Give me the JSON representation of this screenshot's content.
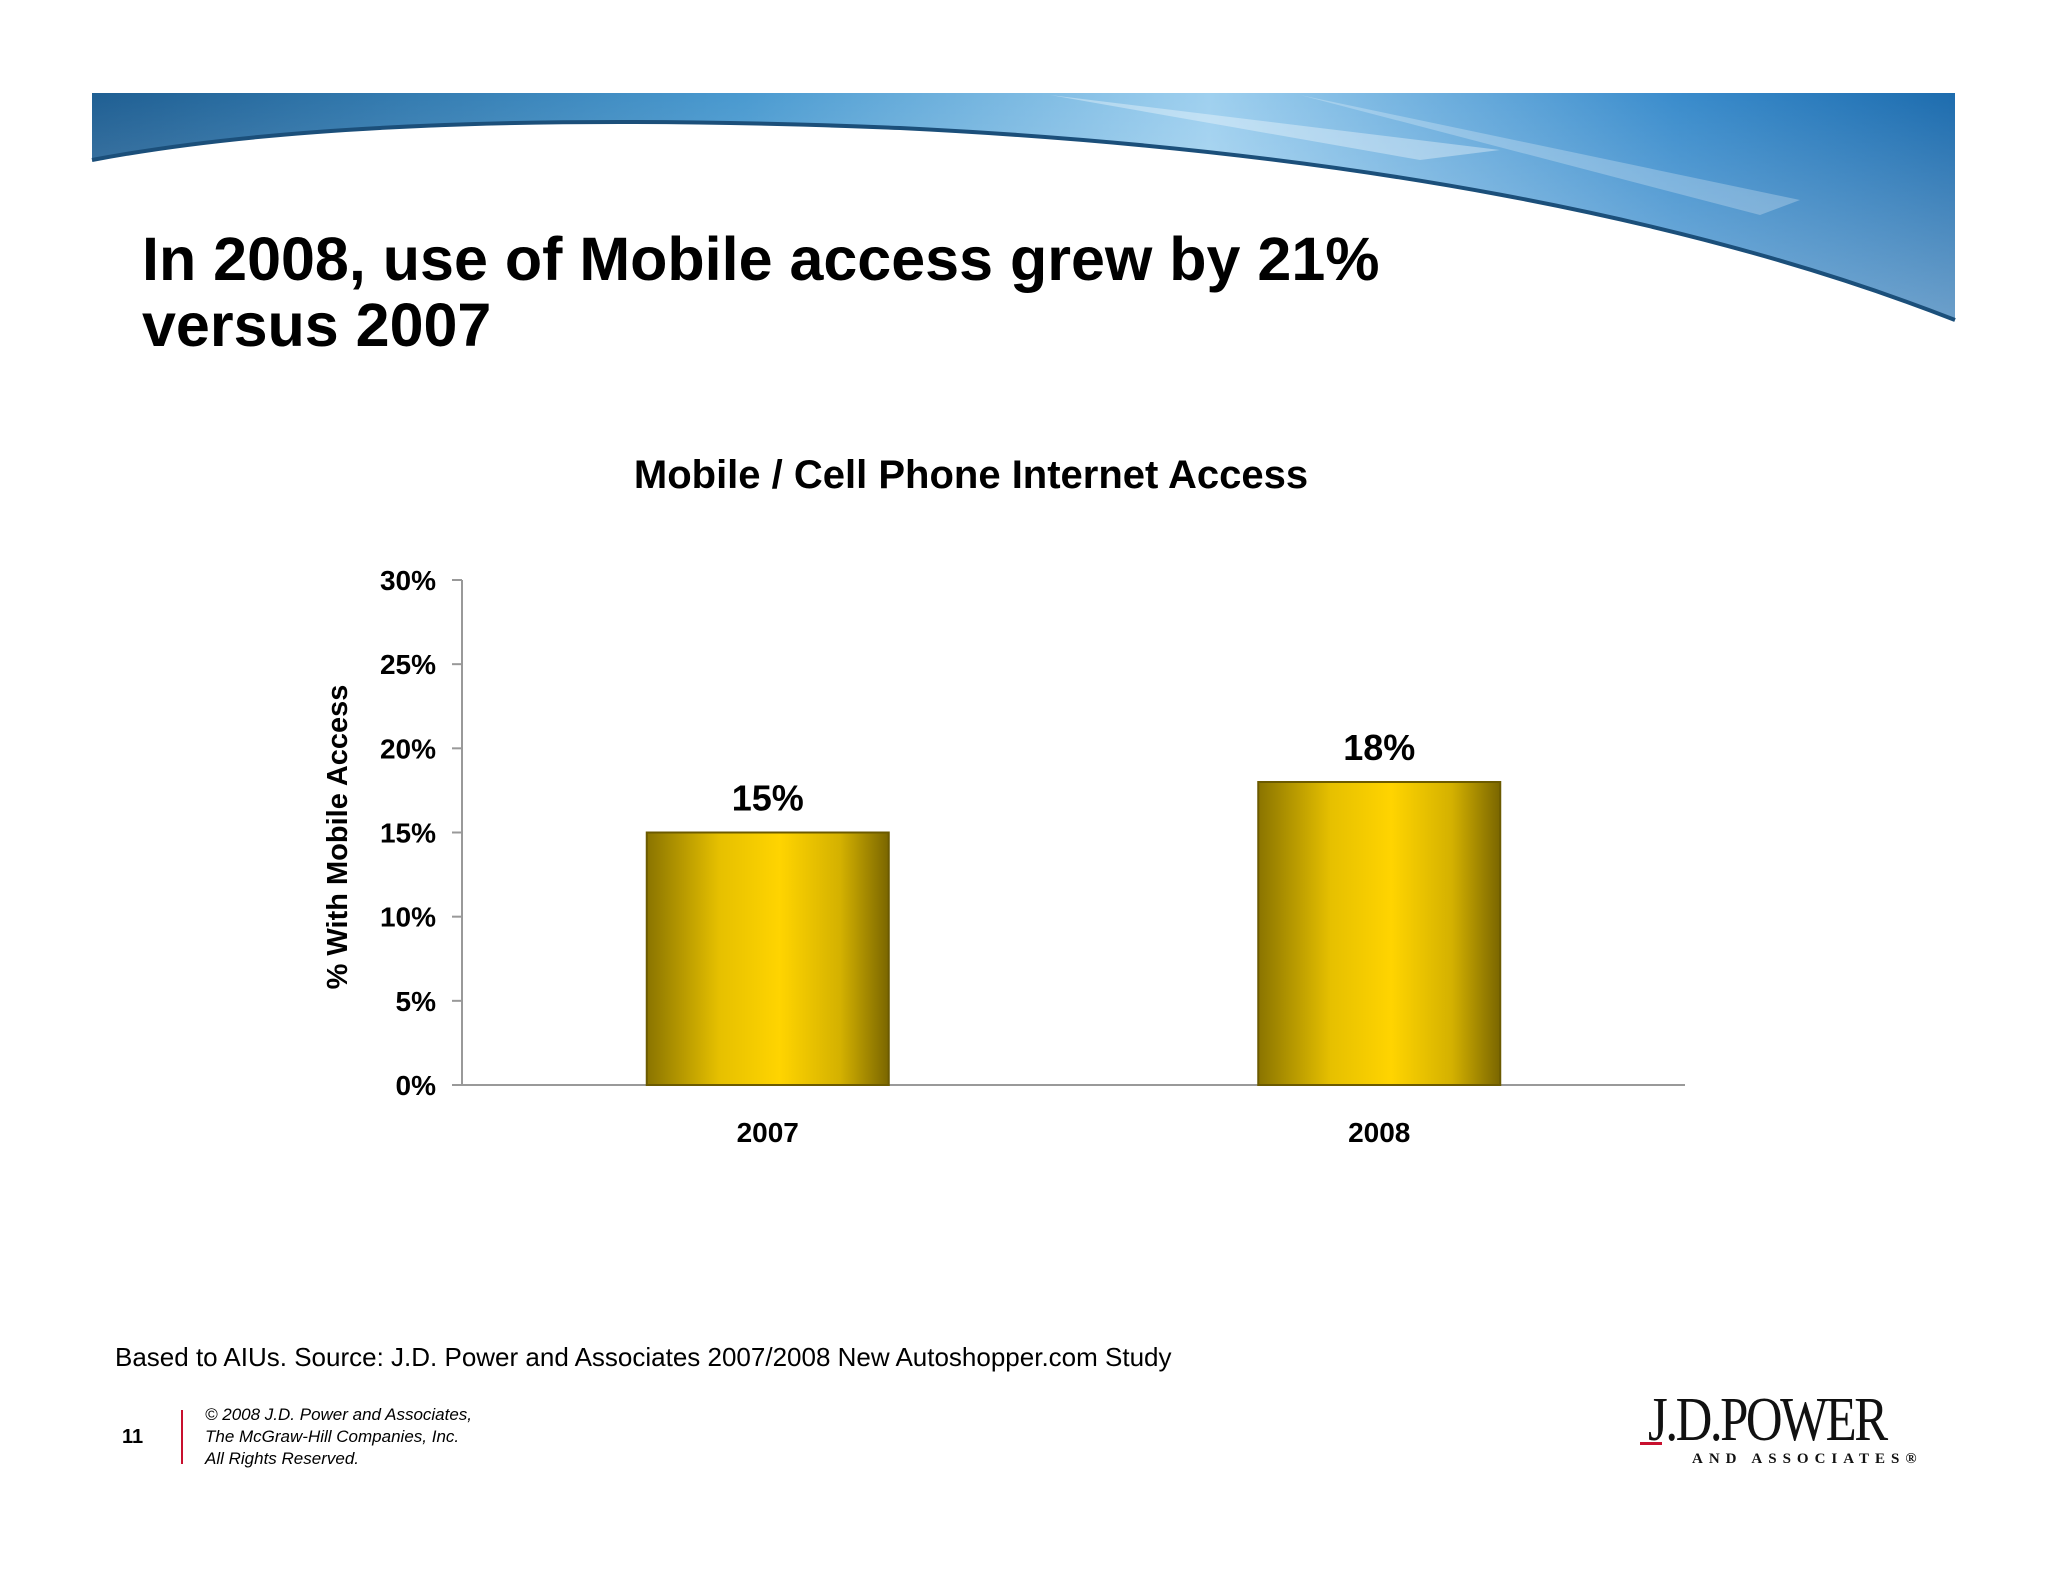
{
  "slide": {
    "title_line1": "In 2008, use of Mobile access grew by 21%",
    "title_line2": "versus 2007",
    "source": "Based to AIUs. Source: J.D. Power and Associates 2007/2008 New Autoshopper.com Study",
    "page_number": "11",
    "copyright": [
      "© 2008 J.D. Power and Associates,",
      "The McGraw-Hill Companies, Inc.",
      "All Rights Reserved."
    ],
    "logo": {
      "main": "J.D.POWER",
      "sub": "AND ASSOCIATES®"
    }
  },
  "colors": {
    "bar_dark": "#8a7400",
    "bar_light": "#ffd400",
    "axis": "#999999",
    "banner_blue": "#2e7fb8",
    "accent_red": "#c8102e"
  },
  "chart_data": {
    "type": "bar",
    "title": "Mobile / Cell Phone Internet Access",
    "xlabel": "",
    "ylabel": "% With Mobile Access",
    "categories": [
      "2007",
      "2008"
    ],
    "values": [
      15,
      18
    ],
    "data_labels": [
      "15%",
      "18%"
    ],
    "ylim": [
      0,
      30
    ],
    "yticks": [
      0,
      5,
      10,
      15,
      20,
      25,
      30
    ],
    "ytick_labels": [
      "0%",
      "5%",
      "10%",
      "15%",
      "20%",
      "25%",
      "30%"
    ],
    "grid": false,
    "legend": "none"
  }
}
